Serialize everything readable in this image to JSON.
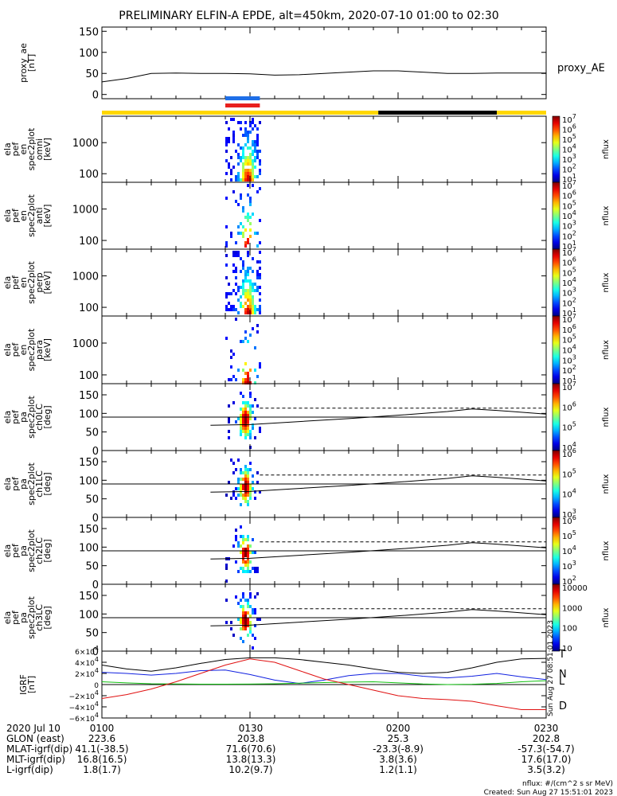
{
  "title": "PRELIMINARY ELFIN-A EPDE, alt=450km, 2020-07-10 01:00 to 02:30",
  "colors": {
    "yellow": "#ffd700",
    "black": "#000000",
    "blue_bar": "#1e6fe8",
    "red_bar": "#e8201e",
    "component_T": "#000000",
    "component_N": "#1020e0",
    "component_L": "#10c010",
    "component_D": "#e01010"
  },
  "chart_data": [
    {
      "type": "line",
      "panel": "proxy_ae",
      "ylabel": "proxy_ae [nT]",
      "yticks": [
        "150",
        "100",
        "50",
        "0"
      ],
      "ylim": [
        -10,
        160
      ],
      "series": [
        {
          "name": "proxy_AE",
          "x": [
            "01:00",
            "01:05",
            "01:10",
            "01:15",
            "01:20",
            "01:25",
            "01:30",
            "01:35",
            "01:40",
            "01:45",
            "01:50",
            "01:55",
            "02:00",
            "02:05",
            "02:10",
            "02:15",
            "02:20",
            "02:25",
            "02:30"
          ],
          "values": [
            30,
            38,
            50,
            51,
            50,
            50,
            49,
            46,
            47,
            50,
            53,
            56,
            56,
            53,
            50,
            50,
            51,
            51,
            51
          ]
        }
      ]
    },
    {
      "type": "heatmap",
      "panel": "omni",
      "ylabel": "ela pef en spec2plot omni [keV]",
      "yticks": [
        "1000",
        "100"
      ],
      "colorbar": {
        "label": "nflux",
        "ticks": [
          "10^7",
          "10^6",
          "10^5",
          "10^4",
          "10^3",
          "10^2",
          "10^1"
        ]
      }
    },
    {
      "type": "heatmap",
      "panel": "anti",
      "ylabel": "ela pef en spec2plot anti [keV]",
      "yticks": [
        "1000",
        "100"
      ],
      "colorbar": {
        "label": "nflux",
        "ticks": [
          "10^7",
          "10^6",
          "10^5",
          "10^4",
          "10^3",
          "10^2",
          "10^1"
        ]
      }
    },
    {
      "type": "heatmap",
      "panel": "perp",
      "ylabel": "ela pef en spec2plot perp [keV]",
      "yticks": [
        "1000",
        "100"
      ],
      "colorbar": {
        "label": "nflux",
        "ticks": [
          "10^7",
          "10^6",
          "10^5",
          "10^4",
          "10^3",
          "10^2",
          "10^1"
        ]
      }
    },
    {
      "type": "heatmap",
      "panel": "para",
      "ylabel": "ela pef en spec2plot para [keV]",
      "yticks": [
        "1000",
        "100"
      ],
      "colorbar": {
        "label": "nflux",
        "ticks": [
          "10^7",
          "10^6",
          "10^5",
          "10^4",
          "10^3",
          "10^2",
          "10^1"
        ]
      }
    },
    {
      "type": "heatmap",
      "panel": "ch0LC",
      "ylabel": "ela pef pa spec2plot ch0LC [deg]",
      "yticks": [
        "150",
        "100",
        "50",
        "0"
      ],
      "colorbar": {
        "label": "nflux",
        "ticks": [
          "10^7",
          "10^6",
          "10^5",
          "10^4"
        ]
      }
    },
    {
      "type": "heatmap",
      "panel": "ch1LC",
      "ylabel": "ela pef pa spec2plot ch1LC [deg]",
      "yticks": [
        "150",
        "100",
        "50",
        "0"
      ],
      "colorbar": {
        "label": "nflux",
        "ticks": [
          "10^6",
          "10^5",
          "10^4",
          "10^3"
        ]
      }
    },
    {
      "type": "heatmap",
      "panel": "ch2LC",
      "ylabel": "ela pef pa spec2plot ch2LC [deg]",
      "yticks": [
        "150",
        "100",
        "50",
        "0"
      ],
      "colorbar": {
        "label": "nflux",
        "ticks": [
          "10^6",
          "10^5",
          "10^4",
          "10^3",
          "10^2"
        ]
      }
    },
    {
      "type": "heatmap",
      "panel": "ch3LC",
      "ylabel": "ela pef pa spec2plot ch3LC [deg]",
      "yticks": [
        "150",
        "100",
        "50",
        "0"
      ],
      "colorbar": {
        "label": "nflux",
        "ticks": [
          "10000",
          "1000",
          "100",
          "10"
        ]
      }
    },
    {
      "type": "line",
      "panel": "igrf",
      "ylabel": "IGRF [nT]",
      "yticks": [
        "6×10^4",
        "4×10^4",
        "2×10^4",
        "0",
        "−2×10^4",
        "−4×10^4",
        "−6×10^4"
      ],
      "ylim": [
        -60000,
        60000
      ],
      "series": [
        {
          "name": "T",
          "x": [
            "01:00",
            "01:05",
            "01:10",
            "01:15",
            "01:20",
            "01:25",
            "01:30",
            "01:35",
            "01:40",
            "01:45",
            "01:50",
            "01:55",
            "02:00",
            "02:05",
            "02:10",
            "02:15",
            "02:20",
            "02:25",
            "02:30"
          ],
          "values": [
            35000,
            28000,
            24000,
            30000,
            38000,
            45000,
            48000,
            48000,
            45000,
            40000,
            35000,
            28000,
            22000,
            20000,
            22000,
            30000,
            40000,
            46000,
            47000
          ]
        },
        {
          "name": "N",
          "x": [
            "01:00",
            "01:05",
            "01:10",
            "01:15",
            "01:20",
            "01:25",
            "01:30",
            "01:35",
            "01:40",
            "01:45",
            "01:50",
            "01:55",
            "02:00",
            "02:05",
            "02:10",
            "02:15",
            "02:20",
            "02:25",
            "02:30"
          ],
          "values": [
            22000,
            20000,
            17000,
            20000,
            25000,
            26000,
            18000,
            8000,
            2000,
            8000,
            16000,
            20000,
            20000,
            15000,
            12000,
            15000,
            20000,
            14000,
            9000
          ]
        },
        {
          "name": "L",
          "x": [
            "01:00",
            "01:05",
            "01:10",
            "01:15",
            "01:20",
            "01:25",
            "01:30",
            "01:35",
            "01:40",
            "01:45",
            "01:50",
            "01:55",
            "02:00",
            "02:05",
            "02:10",
            "02:15",
            "02:20",
            "02:25",
            "02:30"
          ],
          "values": [
            5000,
            3000,
            1500,
            1000,
            800,
            800,
            900,
            1500,
            2500,
            3500,
            4500,
            5000,
            3000,
            1000,
            0,
            500,
            2000,
            5000,
            7000
          ]
        },
        {
          "name": "D",
          "x": [
            "01:00",
            "01:05",
            "01:10",
            "01:15",
            "01:20",
            "01:25",
            "01:30",
            "01:35",
            "01:40",
            "01:45",
            "01:50",
            "01:55",
            "02:00",
            "02:05",
            "02:10",
            "02:15",
            "02:20",
            "02:25",
            "02:30"
          ],
          "values": [
            -25000,
            -18000,
            -8000,
            5000,
            20000,
            35000,
            46000,
            40000,
            25000,
            10000,
            0,
            -10000,
            -20000,
            -25000,
            -27000,
            -30000,
            -38000,
            -45000,
            -45000
          ]
        }
      ]
    }
  ],
  "panel_labels": {
    "proxy_ae": [
      "proxy_ae",
      "[nT]"
    ],
    "omni": [
      "ela",
      "pef",
      "en",
      "spec2plot",
      "omni",
      "[keV]"
    ],
    "anti": [
      "ela",
      "pef",
      "en",
      "spec2plot",
      "anti",
      "[keV]"
    ],
    "perp": [
      "ela",
      "pef",
      "en",
      "spec2plot",
      "perp",
      "[keV]"
    ],
    "para": [
      "ela",
      "pef",
      "en",
      "spec2plot",
      "para",
      "[keV]"
    ],
    "ch0LC": [
      "ela",
      "pef",
      "pa",
      "spec2plot",
      "ch0LC",
      "[deg]"
    ],
    "ch1LC": [
      "ela",
      "pef",
      "pa",
      "spec2plot",
      "ch1LC",
      "[deg]"
    ],
    "ch2LC": [
      "ela",
      "pef",
      "pa",
      "spec2plot",
      "ch2LC",
      "[deg]"
    ],
    "ch3LC": [
      "ela",
      "pef",
      "pa",
      "spec2plot",
      "ch3LC",
      "[deg]"
    ],
    "igrf": [
      "IGRF",
      "[nT]"
    ]
  },
  "series_label_ae": "proxy_AE",
  "igrf_legend": [
    "T",
    "N",
    "L",
    "D"
  ],
  "created_vertical": "Sun Aug 27 08:51:01 2023",
  "footer": {
    "rows": [
      {
        "label": "2020 Jul 10",
        "values": [
          "0100",
          "0130",
          "0200",
          "0230"
        ]
      },
      {
        "label": "GLON (east)",
        "values": [
          "223.6",
          "203.8",
          "25.3",
          "202.8"
        ]
      },
      {
        "label": "MLAT-igrf(dip)",
        "values": [
          "41.1(-38.5)",
          "71.6(70.6)",
          "-23.3(-8.9)",
          "-57.3(-54.7)"
        ]
      },
      {
        "label": "MLT-igrf(dip)",
        "values": [
          "16.8(16.5)",
          "13.8(13.3)",
          "3.8(3.6)",
          "17.6(17.0)"
        ]
      },
      {
        "label": "L-igrf(dip)",
        "values": [
          "1.8(1.7)",
          "10.2(9.7)",
          "1.2(1.1)",
          "3.5(3.2)"
        ]
      }
    ],
    "units_note": "nflux: #/(cm^2 s sr MeV)",
    "created": "Created: Sun Aug 27 15:51:01 2023"
  }
}
